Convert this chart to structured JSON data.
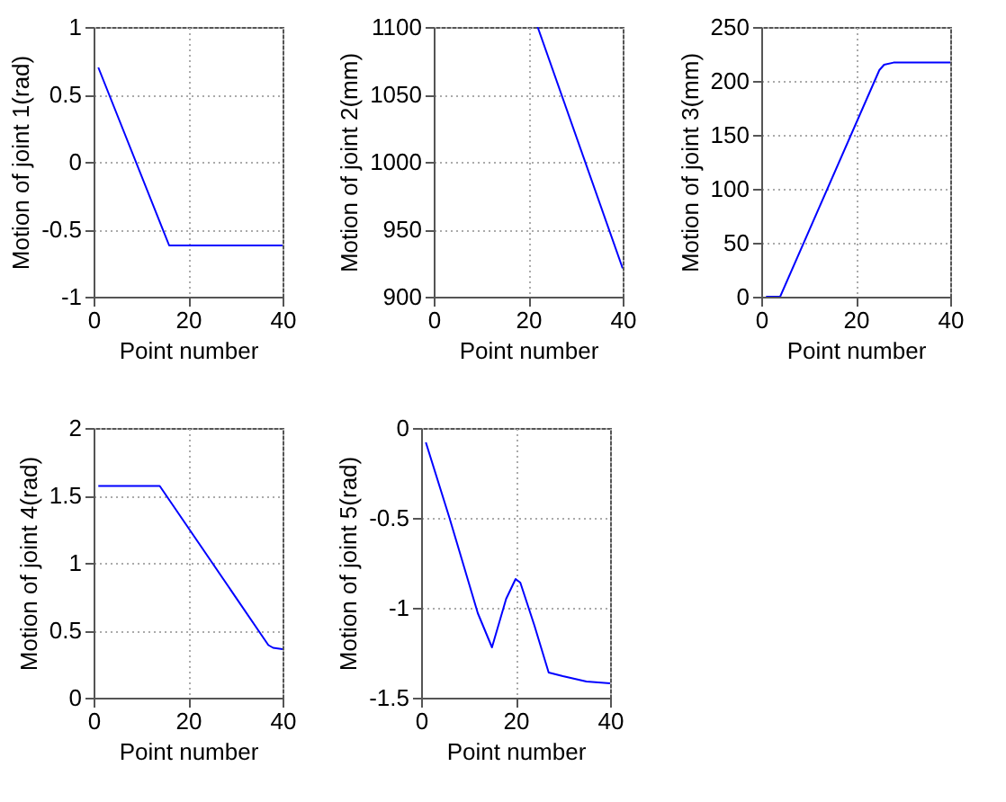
{
  "chart_data": [
    {
      "type": "line",
      "xlabel": "Point number",
      "ylabel": "Motion of joint 1(rad)",
      "xlim": [
        0,
        40
      ],
      "xticks": [
        0,
        20,
        40
      ],
      "ylim": [
        -1,
        1
      ],
      "yticks": [
        -1,
        -0.5,
        0,
        0.5,
        1
      ],
      "grid": true,
      "line_style": "solid",
      "series": [
        {
          "color": "#0000ff",
          "x": [
            1,
            16,
            28,
            40
          ],
          "values": [
            0.7,
            -0.62,
            -0.62,
            -0.62
          ]
        }
      ]
    },
    {
      "type": "line",
      "xlabel": "Point number",
      "ylabel": "Motion of joint 2(mm)",
      "xlim": [
        0,
        40
      ],
      "xticks": [
        0,
        20,
        40
      ],
      "ylim": [
        900,
        1100
      ],
      "yticks": [
        900,
        950,
        1000,
        1050,
        1100
      ],
      "grid": true,
      "line_style": "solid",
      "series": [
        {
          "color": "#0000ff",
          "x": [
            22,
            40
          ],
          "values": [
            1100,
            921
          ]
        }
      ]
    },
    {
      "type": "line",
      "xlabel": "Point number",
      "ylabel": "Motion of joint 3(mm)",
      "xlim": [
        0,
        40
      ],
      "xticks": [
        0,
        20,
        40
      ],
      "ylim": [
        0,
        250
      ],
      "yticks": [
        0,
        50,
        100,
        150,
        200,
        250
      ],
      "grid": true,
      "line_style": "solid",
      "series": [
        {
          "color": "#0000ff",
          "x": [
            1,
            4,
            25,
            26,
            28,
            40
          ],
          "values": [
            0,
            0,
            210,
            215,
            217,
            217
          ]
        }
      ]
    },
    {
      "type": "line",
      "xlabel": "Point number",
      "ylabel": "Motion of joint 4(rad)",
      "xlim": [
        0,
        40
      ],
      "xticks": [
        0,
        20,
        40
      ],
      "ylim": [
        0,
        2
      ],
      "yticks": [
        0,
        0.5,
        1,
        1.5,
        2
      ],
      "grid": true,
      "line_style": "solid",
      "series": [
        {
          "color": "#0000ff",
          "x": [
            1,
            14,
            37,
            38,
            40
          ],
          "values": [
            1.57,
            1.57,
            0.39,
            0.37,
            0.36
          ]
        }
      ]
    },
    {
      "type": "line",
      "xlabel": "Point number",
      "ylabel": "Motion of joint 5(rad)",
      "xlim": [
        0,
        40
      ],
      "xticks": [
        0,
        20,
        40
      ],
      "ylim": [
        -1.5,
        0
      ],
      "yticks": [
        -1.5,
        -1,
        -0.5,
        0
      ],
      "grid": true,
      "line_style": "solid",
      "series": [
        {
          "color": "#0000ff",
          "x": [
            1,
            6,
            12,
            15,
            18,
            20,
            21,
            24,
            27,
            30,
            35,
            40
          ],
          "values": [
            -0.08,
            -0.5,
            -1.03,
            -1.22,
            -0.95,
            -0.84,
            -0.86,
            -1.1,
            -1.36,
            -1.38,
            -1.41,
            -1.42
          ]
        }
      ]
    }
  ]
}
